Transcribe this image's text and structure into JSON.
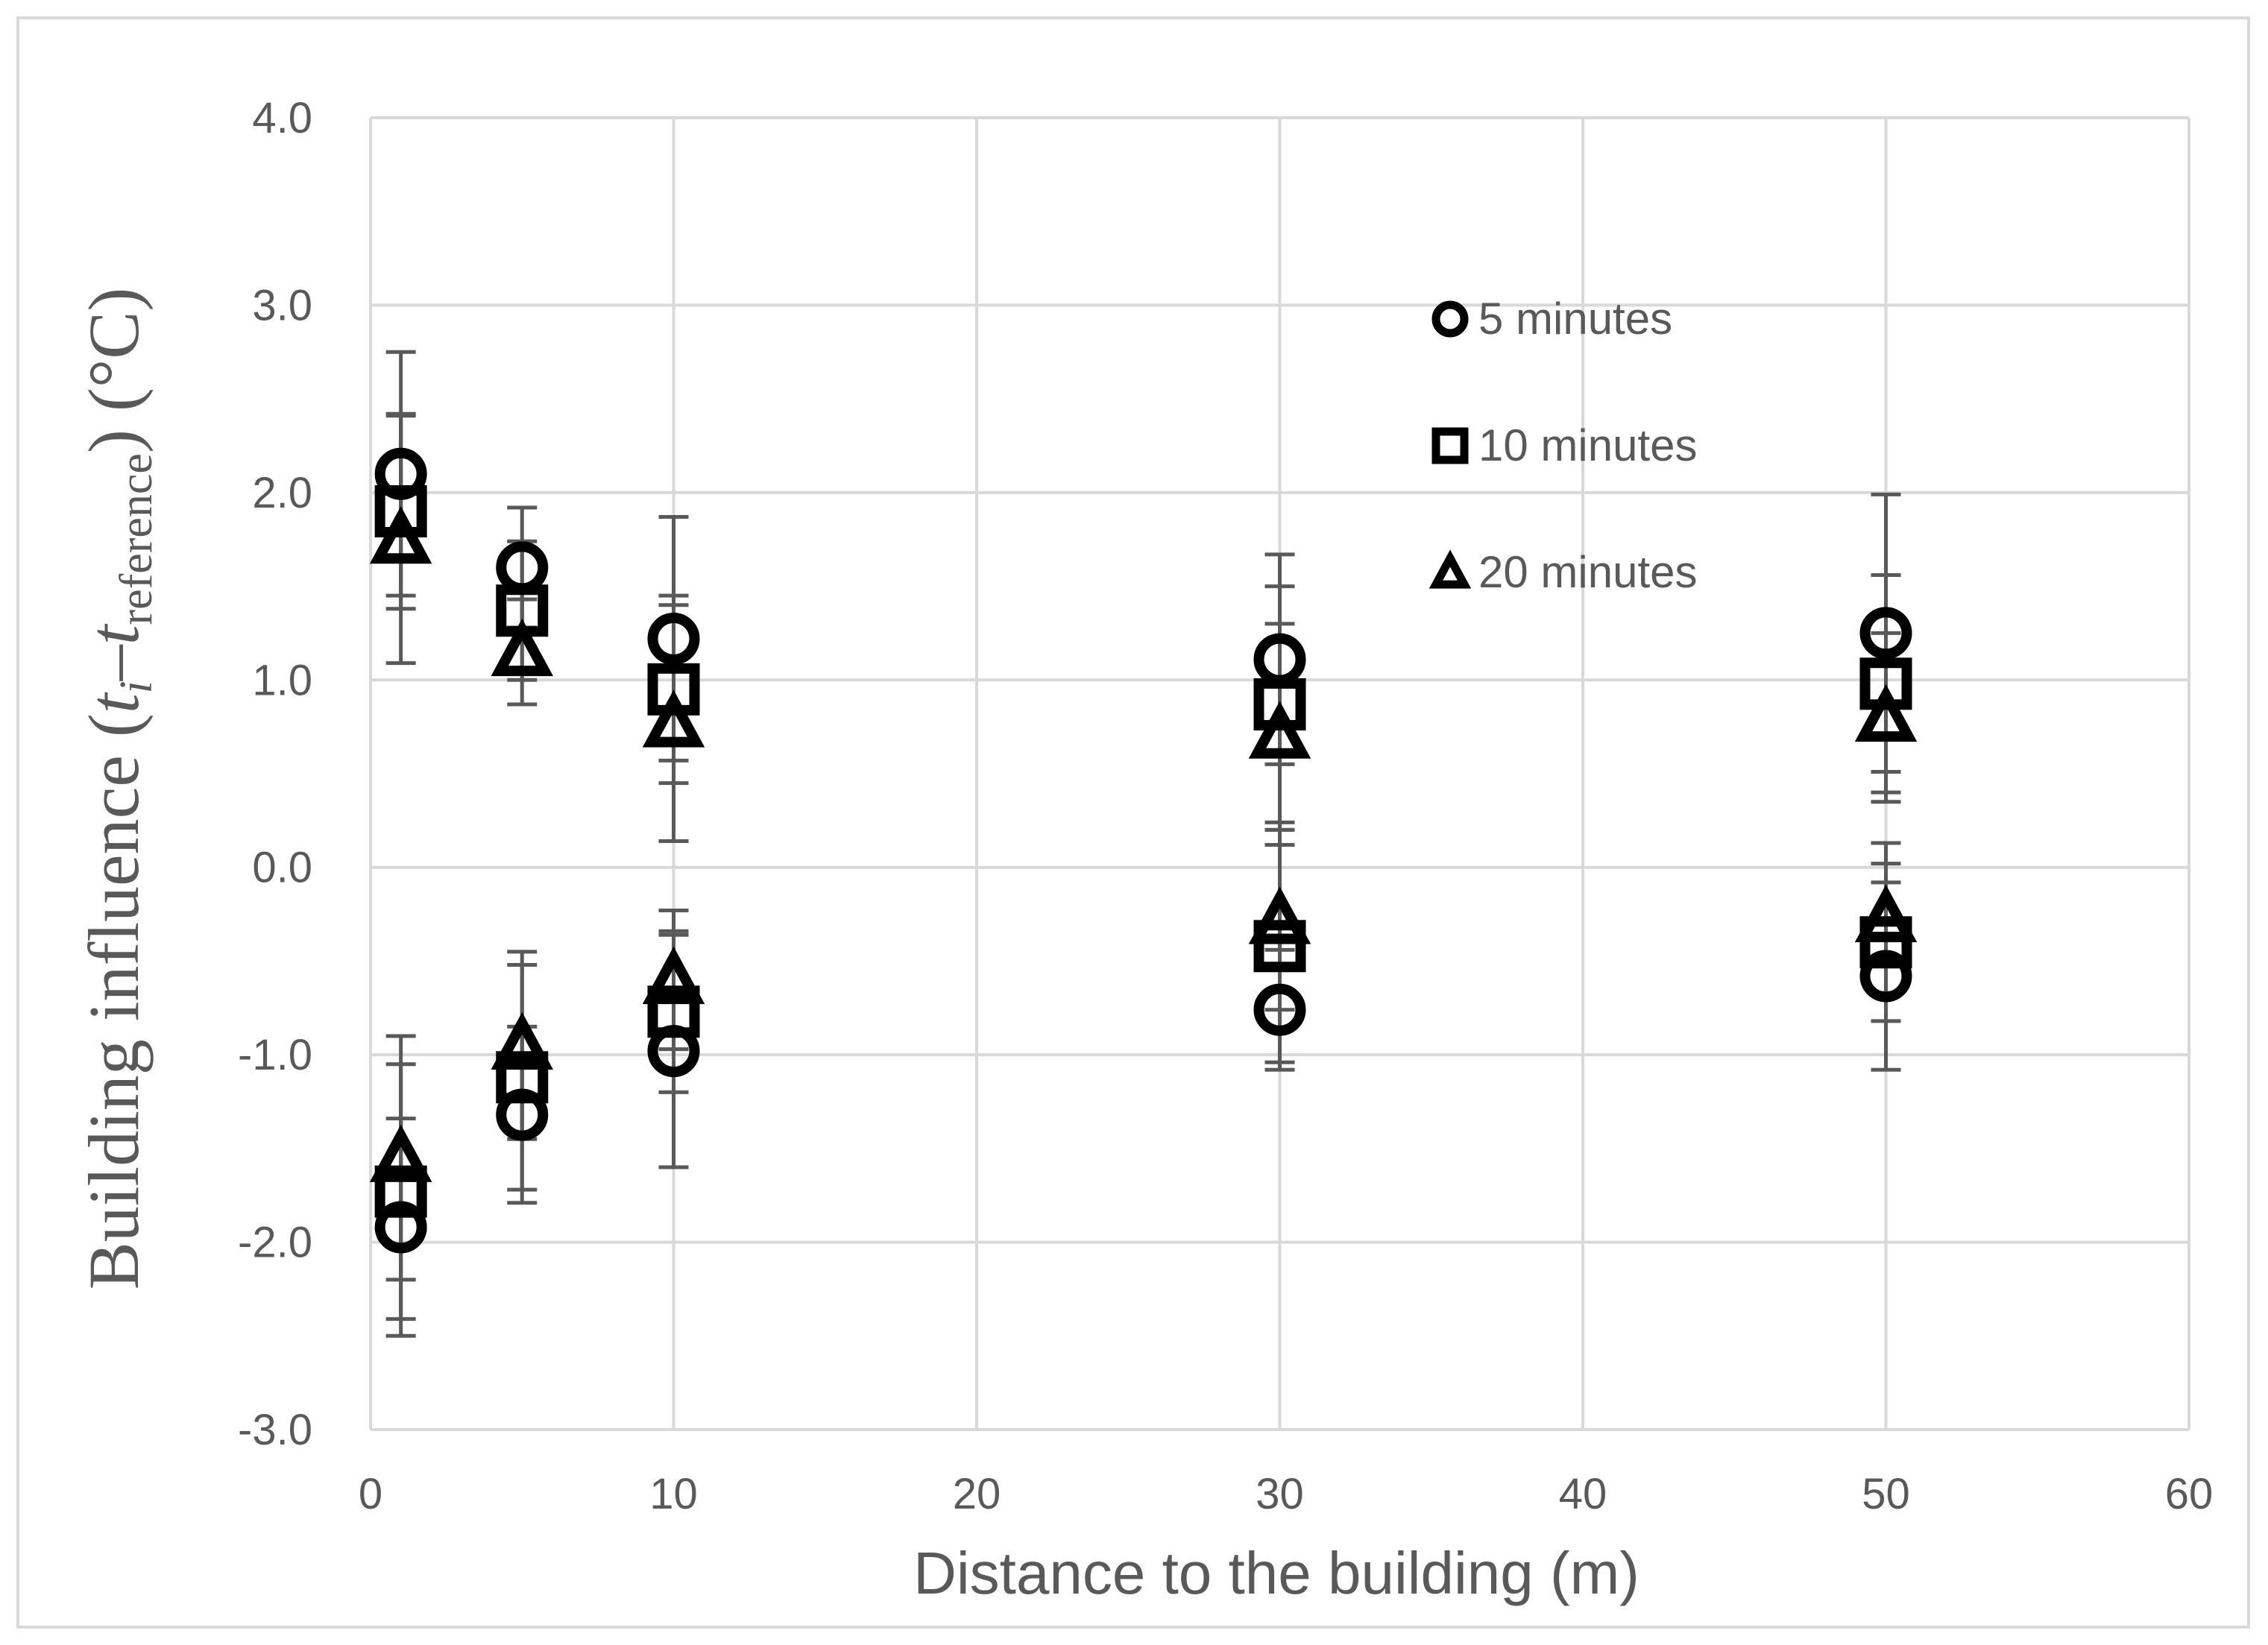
{
  "chart_data": {
    "type": "scatter",
    "xlabel": "Distance to the building (m)",
    "ylabel_parts": {
      "prefix": "Building influence (",
      "t1": "t",
      "sub1": "i",
      "dash": "–",
      "t2": "t",
      "sub2": "reference",
      "suffix": ") (°C)"
    },
    "xlim": [
      0,
      60
    ],
    "ylim": [
      -3.0,
      4.0
    ],
    "x_ticks": [
      "0",
      "10",
      "20",
      "30",
      "40",
      "50",
      "60"
    ],
    "x_tick_values": [
      0,
      10,
      20,
      30,
      40,
      50,
      60
    ],
    "y_ticks": [
      "-3.0",
      "-2.0",
      "-1.0",
      "0.0",
      "1.0",
      "2.0",
      "3.0",
      "4.0"
    ],
    "y_tick_values": [
      -3,
      -2,
      -1,
      0,
      1,
      2,
      3,
      4
    ],
    "grid": true,
    "legend_position": "top-right",
    "series": [
      {
        "name": "5 minutes",
        "marker": "circle",
        "points": [
          {
            "x": 1,
            "y": 2.1,
            "err": 0.65
          },
          {
            "x": 5,
            "y": 1.6,
            "err": 0.32
          },
          {
            "x": 10,
            "y": 1.22,
            "err": 0.65
          },
          {
            "x": 30,
            "y": 1.11,
            "err": 0.56
          },
          {
            "x": 50,
            "y": 1.25,
            "err": 0.74
          },
          {
            "x": 1,
            "y": -1.92,
            "err": 0.58
          },
          {
            "x": 5,
            "y": -1.32,
            "err": 0.47
          },
          {
            "x": 10,
            "y": -0.98,
            "err": 0.62
          },
          {
            "x": 30,
            "y": -0.76,
            "err": 0.32
          },
          {
            "x": 50,
            "y": -0.58,
            "err": 0.5
          }
        ]
      },
      {
        "name": "10 minutes",
        "marker": "square",
        "points": [
          {
            "x": 1,
            "y": 1.9,
            "err": 0.52
          },
          {
            "x": 5,
            "y": 1.37,
            "err": 0.37
          },
          {
            "x": 10,
            "y": 0.95,
            "err": 0.5
          },
          {
            "x": 30,
            "y": 0.87,
            "err": 0.63
          },
          {
            "x": 50,
            "y": 0.98,
            "err": 0.58
          },
          {
            "x": 1,
            "y": -1.73,
            "err": 0.68
          },
          {
            "x": 5,
            "y": -1.12,
            "err": 0.6
          },
          {
            "x": 10,
            "y": -0.77,
            "err": 0.43
          },
          {
            "x": 30,
            "y": -0.42,
            "err": 0.62
          },
          {
            "x": 50,
            "y": -0.4,
            "err": 0.42
          }
        ]
      },
      {
        "name": "20 minutes",
        "marker": "triangle",
        "points": [
          {
            "x": 1,
            "y": 1.75,
            "err": 0.66
          },
          {
            "x": 5,
            "y": 1.15,
            "err": 0.28
          },
          {
            "x": 10,
            "y": 0.77,
            "err": 0.63
          },
          {
            "x": 30,
            "y": 0.71,
            "err": 0.59
          },
          {
            "x": 50,
            "y": 0.8,
            "err": 0.45
          },
          {
            "x": 1,
            "y": -1.55,
            "err": 0.65
          },
          {
            "x": 5,
            "y": -0.95,
            "err": 0.5
          },
          {
            "x": 10,
            "y": -0.6,
            "err": 0.37
          },
          {
            "x": 30,
            "y": -0.28,
            "err": 0.48
          },
          {
            "x": 50,
            "y": -0.27,
            "err": 0.4
          }
        ]
      }
    ]
  }
}
